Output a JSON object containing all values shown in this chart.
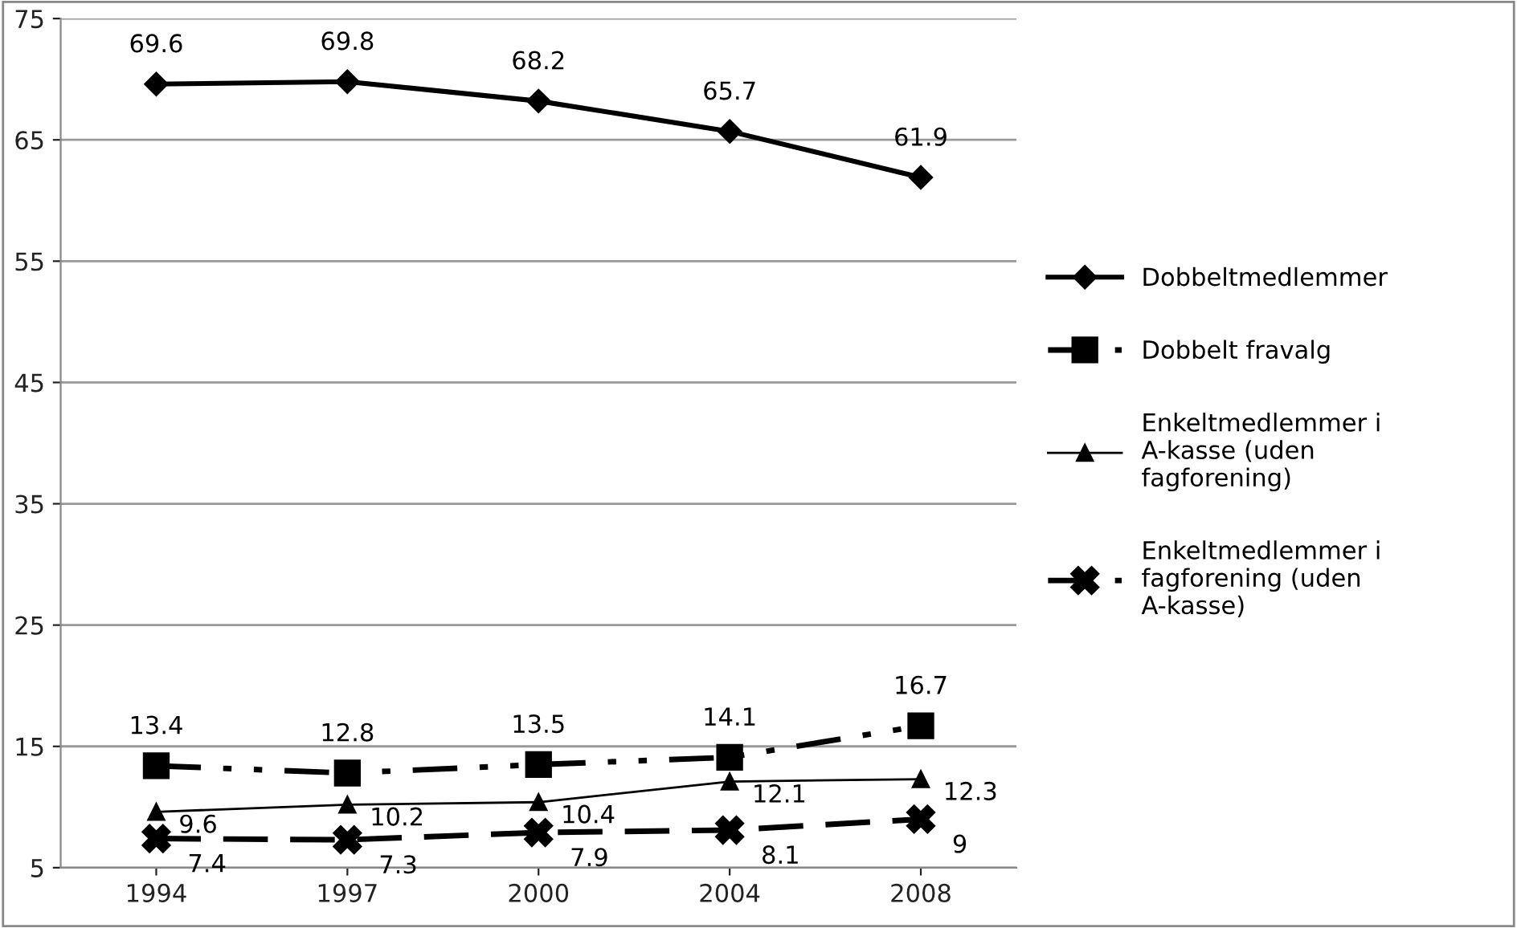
{
  "chart_data": {
    "type": "line",
    "categories": [
      "1994",
      "1997",
      "2000",
      "2004",
      "2008"
    ],
    "series": [
      {
        "name": "Dobbeltmedlemmer",
        "color": "#000000",
        "values": [
          69.6,
          69.8,
          68.2,
          65.7,
          61.9
        ],
        "marker": "diamond",
        "line_style": "solid"
      },
      {
        "name": "Dobbelt fravalg",
        "color": "#000000",
        "values": [
          13.4,
          12.8,
          13.5,
          14.1,
          16.7
        ],
        "marker": "square",
        "line_style": "dotted"
      },
      {
        "name": "Enkeltmedlemmer i A-kasse (uden fagforening)",
        "color": "#000000",
        "values": [
          9.6,
          10.2,
          10.4,
          12.1,
          12.3
        ],
        "marker": "triangle",
        "line_style": "solid"
      },
      {
        "name": "Enkeltmedlemmer i fagforening (uden A-kasse)",
        "color": "#000000",
        "values": [
          7.4,
          7.3,
          7.9,
          8.1,
          9
        ],
        "marker": "cross",
        "line_style": "dashed"
      }
    ],
    "ylim": [
      5,
      75
    ],
    "yticks": [
      5,
      15,
      25,
      35,
      45,
      55,
      65,
      75
    ],
    "grid": "y",
    "legend": "right",
    "data_labels": true
  }
}
